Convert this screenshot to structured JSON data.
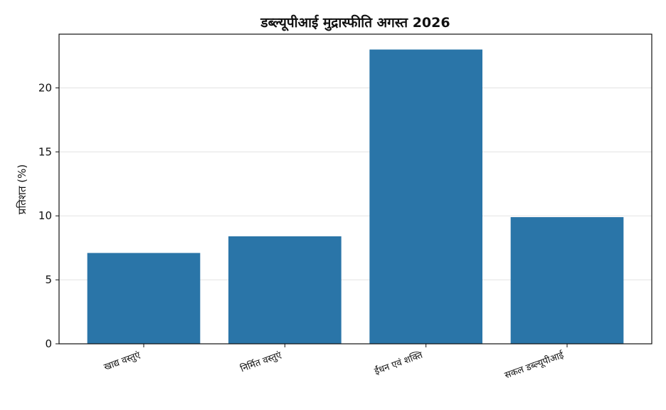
{
  "chart_data": {
    "type": "bar",
    "title": "डब्ल्यूपीआई मुद्रास्फीति अगस्त 2026",
    "xlabel": "",
    "ylabel": "प्रतिशत (%)",
    "categories": [
      "खाद्य वस्तुएं",
      "निर्मित वस्तुएं",
      "ईंधन एवं शक्ति",
      "सकल डब्ल्यूपीआई"
    ],
    "values": [
      7.1,
      8.4,
      23.0,
      9.9
    ],
    "ylim": [
      0,
      24.2
    ],
    "yticks": [
      0,
      5,
      10,
      15,
      20
    ],
    "bar_color": "#2a75a8",
    "grid": "horizontal",
    "legend": "none"
  }
}
